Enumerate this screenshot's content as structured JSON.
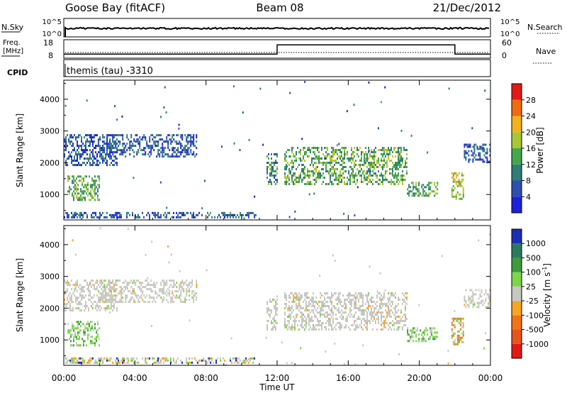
{
  "header": {
    "station": "Goose Bay (fitACF)",
    "beam": "Beam 08",
    "date": "21/Dec/2012"
  },
  "strip": {
    "nsky_label": "N.Sky",
    "nsky_ticks": [
      "10^5",
      "10^0"
    ],
    "nsearch_label": "N.Search",
    "nsearch_ticks": [
      "10^5",
      "10^0"
    ],
    "freq_label_line1": "Freq.",
    "freq_label_line2": "[MHz]",
    "freq_ticks": [
      "18",
      "8"
    ],
    "nave_label": "Nave",
    "nave_ticks": [
      "60",
      "0"
    ],
    "cpid_label": "CPID",
    "cpid_text": "themis (tau) -3310"
  },
  "chart_data": [
    {
      "type": "heatmap",
      "panel": "power",
      "ylabel": "Slant Range [km]",
      "ylim": [
        200,
        4600
      ],
      "y_ticks": [
        1000,
        2000,
        3000,
        4000
      ],
      "x_ticks": [
        "00:00",
        "04:00",
        "08:00",
        "12:00",
        "16:00",
        "20:00",
        "00:00"
      ],
      "xlim_hours": [
        0,
        24
      ],
      "colorbar": {
        "label": "Power [dB]",
        "ticks": [
          "4",
          "8",
          "12",
          "16",
          "20",
          "24",
          "28"
        ],
        "colors": [
          "#1f22d8",
          "#2e4fb0",
          "#2f7f78",
          "#46a64d",
          "#a9c734",
          "#f2b21c",
          "#f06a12",
          "#e21a17"
        ]
      },
      "echo_bands": [
        {
          "t0": 0.0,
          "t1": 3.0,
          "r0": 1900,
          "r1": 2900,
          "level": 1
        },
        {
          "t0": 2.0,
          "t1": 7.5,
          "r0": 2200,
          "r1": 2900,
          "level": 1
        },
        {
          "t0": 0.2,
          "t1": 2.0,
          "r0": 850,
          "r1": 1600,
          "level": 3
        },
        {
          "t0": 0.0,
          "t1": 10.8,
          "r0": 250,
          "r1": 450,
          "level": 1
        },
        {
          "t0": 11.4,
          "t1": 12.0,
          "r0": 1300,
          "r1": 2300,
          "level": 2
        },
        {
          "t0": 12.4,
          "t1": 19.3,
          "r0": 1300,
          "r1": 2500,
          "level": 3
        },
        {
          "t0": 19.3,
          "t1": 21.0,
          "r0": 950,
          "r1": 1400,
          "level": 3
        },
        {
          "t0": 21.8,
          "t1": 22.5,
          "r0": 850,
          "r1": 1700,
          "level": 4
        },
        {
          "t0": 22.5,
          "t1": 24.0,
          "r0": 2000,
          "r1": 2600,
          "level": 1
        }
      ]
    },
    {
      "type": "heatmap",
      "panel": "velocity",
      "ylabel": "Slant Range [km]",
      "ylim": [
        200,
        4600
      ],
      "y_ticks": [
        1000,
        2000,
        3000,
        4000
      ],
      "x_ticks": [
        "00:00",
        "04:00",
        "08:00",
        "12:00",
        "16:00",
        "20:00",
        "00:00"
      ],
      "xlim_hours": [
        0,
        24
      ],
      "xlabel": "Time UT",
      "colorbar": {
        "label": "Velocity [m s^-1]",
        "ticks": [
          "1000",
          "500",
          "100",
          "25",
          "-25",
          "-100",
          "-500",
          "-1000"
        ],
        "colors": [
          "#1a2fb5",
          "#2b7a62",
          "#3f9b3e",
          "#7cd64b",
          "#c8c8c2",
          "#f5a623",
          "#f07417",
          "#e8551b",
          "#e21a17"
        ]
      },
      "echo_bands": [
        {
          "t0": 0.0,
          "t1": 3.0,
          "r0": 1900,
          "r1": 2900,
          "kind": "gray"
        },
        {
          "t0": 2.0,
          "t1": 7.5,
          "r0": 2200,
          "r1": 2900,
          "kind": "gray"
        },
        {
          "t0": 0.2,
          "t1": 2.0,
          "r0": 850,
          "r1": 1600,
          "kind": "green"
        },
        {
          "t0": 0.0,
          "t1": 10.8,
          "r0": 250,
          "r1": 450,
          "kind": "mixed"
        },
        {
          "t0": 11.4,
          "t1": 12.0,
          "r0": 1300,
          "r1": 2300,
          "kind": "gray"
        },
        {
          "t0": 12.4,
          "t1": 19.3,
          "r0": 1300,
          "r1": 2500,
          "kind": "gray"
        },
        {
          "t0": 19.3,
          "t1": 21.0,
          "r0": 950,
          "r1": 1400,
          "kind": "green"
        },
        {
          "t0": 21.8,
          "t1": 22.5,
          "r0": 850,
          "r1": 1700,
          "kind": "orange"
        },
        {
          "t0": 22.5,
          "t1": 24.0,
          "r0": 2000,
          "r1": 2600,
          "kind": "gray"
        }
      ]
    }
  ],
  "frequency_series": {
    "segments": [
      {
        "t0": 0.0,
        "t1": 12.0,
        "mhz": 11
      },
      {
        "t0": 12.0,
        "t1": 22.0,
        "mhz": 16
      },
      {
        "t0": 22.0,
        "t1": 24.0,
        "mhz": 11
      }
    ]
  }
}
